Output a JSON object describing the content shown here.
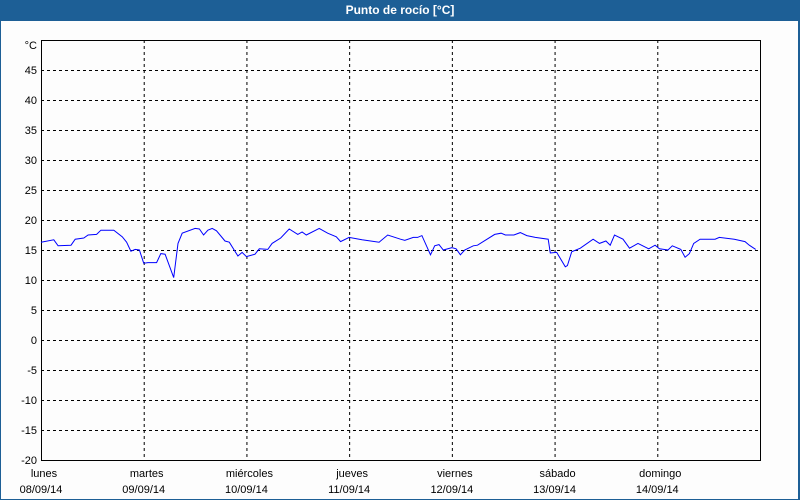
{
  "window": {
    "title": "Punto de rocío [°C]",
    "title_bar_color": "#1d5f96"
  },
  "chart_data": {
    "type": "line",
    "title": "Punto de rocío [°C]",
    "ylabel": "°C",
    "ylim": [
      -20,
      50
    ],
    "yticks": [
      -20,
      -15,
      -10,
      -5,
      0,
      5,
      10,
      15,
      20,
      25,
      30,
      35,
      40,
      45
    ],
    "xlim": [
      "08/09/14 00:00",
      "15/09/14 00:00"
    ],
    "grid": true,
    "line_color": "#0000ff",
    "xticks": [
      {
        "day": "lunes",
        "date": "08/09/14"
      },
      {
        "day": "martes",
        "date": "09/09/14"
      },
      {
        "day": "miércoles",
        "date": "10/09/14"
      },
      {
        "day": "jueves",
        "date": "11/09/14"
      },
      {
        "day": "viernes",
        "date": "12/09/14"
      },
      {
        "day": "sábado",
        "date": "13/09/14"
      },
      {
        "day": "domingo",
        "date": "14/09/14"
      }
    ],
    "series": [
      {
        "points": [
          [
            "08/09/14 00:00",
            16.3
          ],
          [
            "08/09/14 03:00",
            16.7
          ],
          [
            "08/09/14 04:00",
            15.7
          ],
          [
            "08/09/14 07:00",
            15.8
          ],
          [
            "08/09/14 08:00",
            16.8
          ],
          [
            "08/09/14 10:00",
            17.0
          ],
          [
            "08/09/14 11:00",
            17.5
          ],
          [
            "08/09/14 13:00",
            17.6
          ],
          [
            "08/09/14 14:00",
            18.3
          ],
          [
            "08/09/14 17:00",
            18.3
          ],
          [
            "08/09/14 19:00",
            17.2
          ],
          [
            "08/09/14 20:00",
            16.3
          ],
          [
            "08/09/14 21:00",
            14.8
          ],
          [
            "08/09/14 22:00",
            15.1
          ],
          [
            "08/09/14 23:00",
            15.0
          ],
          [
            "09/09/14 00:00",
            12.8
          ],
          [
            "09/09/14 01:00",
            12.9
          ],
          [
            "09/09/14 03:00",
            12.9
          ],
          [
            "09/09/14 04:00",
            14.4
          ],
          [
            "09/09/14 05:00",
            14.3
          ],
          [
            "09/09/14 07:00",
            10.4
          ],
          [
            "09/09/14 08:00",
            16.1
          ],
          [
            "09/09/14 09:00",
            17.8
          ],
          [
            "09/09/14 12:00",
            18.6
          ],
          [
            "09/09/14 13:00",
            18.5
          ],
          [
            "09/09/14 14:00",
            17.5
          ],
          [
            "09/09/14 15:00",
            18.3
          ],
          [
            "09/09/14 16:00",
            18.6
          ],
          [
            "09/09/14 17:00",
            18.2
          ],
          [
            "09/09/14 19:00",
            16.5
          ],
          [
            "09/09/14 20:00",
            16.3
          ],
          [
            "09/09/14 22:00",
            14.0
          ],
          [
            "09/09/14 23:00",
            14.6
          ],
          [
            "10/09/14 00:00",
            13.9
          ],
          [
            "10/09/14 02:00",
            14.3
          ],
          [
            "10/09/14 03:00",
            15.2
          ],
          [
            "10/09/14 05:00",
            15.1
          ],
          [
            "10/09/14 06:00",
            16.1
          ],
          [
            "10/09/14 08:00",
            17.0
          ],
          [
            "10/09/14 10:00",
            18.5
          ],
          [
            "10/09/14 12:00",
            17.6
          ],
          [
            "10/09/14 13:00",
            18.0
          ],
          [
            "10/09/14 14:00",
            17.5
          ],
          [
            "10/09/14 17:00",
            18.6
          ],
          [
            "10/09/14 19:00",
            17.8
          ],
          [
            "10/09/14 21:00",
            17.2
          ],
          [
            "10/09/14 22:00",
            16.4
          ],
          [
            "11/09/14 00:00",
            17.1
          ],
          [
            "11/09/14 03:00",
            16.7
          ],
          [
            "11/09/14 07:00",
            16.3
          ],
          [
            "11/09/14 09:00",
            17.5
          ],
          [
            "11/09/14 12:00",
            16.8
          ],
          [
            "11/09/14 13:00",
            16.6
          ],
          [
            "11/09/14 15:00",
            17.1
          ],
          [
            "11/09/14 16:00",
            17.1
          ],
          [
            "11/09/14 17:00",
            17.4
          ],
          [
            "11/09/14 19:00",
            14.2
          ],
          [
            "11/09/14 20:00",
            15.7
          ],
          [
            "11/09/14 21:00",
            15.9
          ],
          [
            "11/09/14 22:00",
            15.0
          ],
          [
            "12/09/14 00:00",
            15.4
          ],
          [
            "12/09/14 01:00",
            15.2
          ],
          [
            "12/09/14 02:00",
            14.2
          ],
          [
            "12/09/14 03:00",
            15.0
          ],
          [
            "12/09/14 05:00",
            15.7
          ],
          [
            "12/09/14 06:00",
            15.8
          ],
          [
            "12/09/14 10:00",
            17.6
          ],
          [
            "12/09/14 11:30",
            17.8
          ],
          [
            "12/09/14 12:30",
            17.5
          ],
          [
            "12/09/14 14:30",
            17.5
          ],
          [
            "12/09/14 16:00",
            17.9
          ],
          [
            "12/09/14 17:30",
            17.4
          ],
          [
            "12/09/14 19:30",
            17.1
          ],
          [
            "12/09/14 22:30",
            16.8
          ],
          [
            "12/09/14 23:00",
            14.5
          ],
          [
            "13/09/14 00:30",
            14.6
          ],
          [
            "13/09/14 02:30",
            12.2
          ],
          [
            "13/09/14 03:00",
            12.4
          ],
          [
            "13/09/14 04:00",
            14.7
          ],
          [
            "13/09/14 06:00",
            15.3
          ],
          [
            "13/09/14 09:00",
            16.8
          ],
          [
            "13/09/14 10:30",
            16.1
          ],
          [
            "13/09/14 12:00",
            16.5
          ],
          [
            "13/09/14 13:00",
            15.8
          ],
          [
            "13/09/14 14:00",
            17.5
          ],
          [
            "13/09/14 16:00",
            16.8
          ],
          [
            "13/09/14 17:30",
            15.3
          ],
          [
            "13/09/14 19:30",
            16.1
          ],
          [
            "13/09/14 22:00",
            15.2
          ],
          [
            "13/09/14 23:30",
            15.8
          ],
          [
            "14/09/14 00:30",
            15.2
          ],
          [
            "14/09/14 02:30",
            15.0
          ],
          [
            "14/09/14 03:30",
            15.7
          ],
          [
            "14/09/14 05:30",
            15.1
          ],
          [
            "14/09/14 06:30",
            13.8
          ],
          [
            "14/09/14 07:30",
            14.4
          ],
          [
            "14/09/14 08:30",
            16.1
          ],
          [
            "14/09/14 10:00",
            16.8
          ],
          [
            "14/09/14 13:30",
            16.8
          ],
          [
            "14/09/14 14:30",
            17.1
          ],
          [
            "14/09/14 18:00",
            16.8
          ],
          [
            "14/09/14 20:30",
            16.4
          ],
          [
            "14/09/14 21:30",
            15.8
          ],
          [
            "14/09/14 23:00",
            15.1
          ]
        ]
      }
    ]
  }
}
